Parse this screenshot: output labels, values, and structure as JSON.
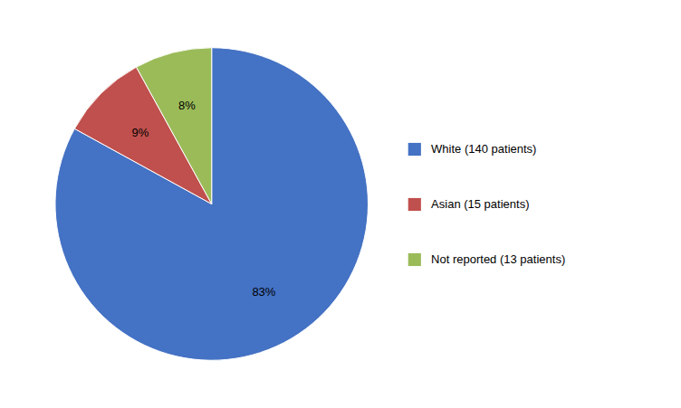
{
  "chart_data": {
    "type": "pie",
    "categories": [
      "White (140 patients)",
      "Asian (15 patients)",
      "Not reported (13 patients)"
    ],
    "values": [
      83,
      9,
      8
    ],
    "value_labels": [
      "83%",
      "9%",
      "8%"
    ],
    "colors": [
      "#4472C4",
      "#C0504D",
      "#9BBB59"
    ],
    "data_labels": true,
    "legend": "right"
  }
}
